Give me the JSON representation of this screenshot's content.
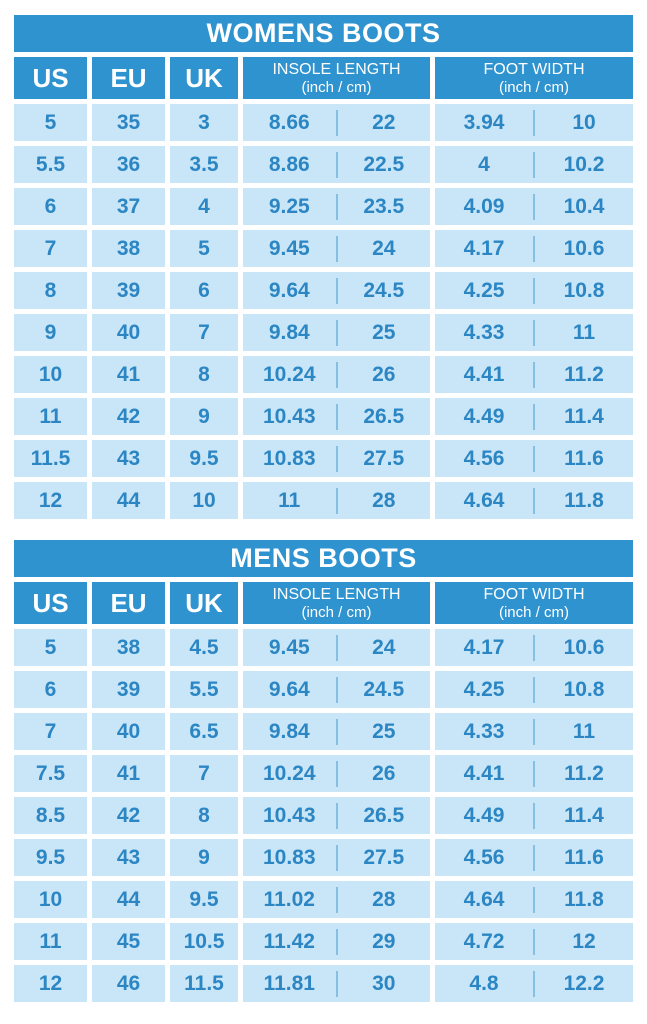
{
  "colors": {
    "header_bg": "#2E93CF",
    "header_text": "#FFFFFF",
    "cell_bg": "#C9E6F8",
    "cell_text": "#2B86C3",
    "divider": "#85BFE1",
    "page_bg": "#FFFFFF"
  },
  "chart_data": [
    {
      "type": "table",
      "title": "WOMENS BOOTS",
      "headers": {
        "us": "US",
        "eu": "EU",
        "uk": "UK",
        "insole_title": "INSOLE LENGTH",
        "insole_sub": "(inch / cm)",
        "foot_title": "FOOT WIDTH",
        "foot_sub": "(inch / cm)"
      },
      "rows": [
        {
          "us": "5",
          "eu": "35",
          "uk": "3",
          "insole_in": "8.66",
          "insole_cm": "22",
          "foot_in": "3.94",
          "foot_cm": "10"
        },
        {
          "us": "5.5",
          "eu": "36",
          "uk": "3.5",
          "insole_in": "8.86",
          "insole_cm": "22.5",
          "foot_in": "4",
          "foot_cm": "10.2"
        },
        {
          "us": "6",
          "eu": "37",
          "uk": "4",
          "insole_in": "9.25",
          "insole_cm": "23.5",
          "foot_in": "4.09",
          "foot_cm": "10.4"
        },
        {
          "us": "7",
          "eu": "38",
          "uk": "5",
          "insole_in": "9.45",
          "insole_cm": "24",
          "foot_in": "4.17",
          "foot_cm": "10.6"
        },
        {
          "us": "8",
          "eu": "39",
          "uk": "6",
          "insole_in": "9.64",
          "insole_cm": "24.5",
          "foot_in": "4.25",
          "foot_cm": "10.8"
        },
        {
          "us": "9",
          "eu": "40",
          "uk": "7",
          "insole_in": "9.84",
          "insole_cm": "25",
          "foot_in": "4.33",
          "foot_cm": "11"
        },
        {
          "us": "10",
          "eu": "41",
          "uk": "8",
          "insole_in": "10.24",
          "insole_cm": "26",
          "foot_in": "4.41",
          "foot_cm": "11.2"
        },
        {
          "us": "11",
          "eu": "42",
          "uk": "9",
          "insole_in": "10.43",
          "insole_cm": "26.5",
          "foot_in": "4.49",
          "foot_cm": "11.4"
        },
        {
          "us": "11.5",
          "eu": "43",
          "uk": "9.5",
          "insole_in": "10.83",
          "insole_cm": "27.5",
          "foot_in": "4.56",
          "foot_cm": "11.6"
        },
        {
          "us": "12",
          "eu": "44",
          "uk": "10",
          "insole_in": "11",
          "insole_cm": "28",
          "foot_in": "4.64",
          "foot_cm": "11.8"
        }
      ]
    },
    {
      "type": "table",
      "title": "MENS BOOTS",
      "headers": {
        "us": "US",
        "eu": "EU",
        "uk": "UK",
        "insole_title": "INSOLE LENGTH",
        "insole_sub": "(inch / cm)",
        "foot_title": "FOOT WIDTH",
        "foot_sub": "(inch / cm)"
      },
      "rows": [
        {
          "us": "5",
          "eu": "38",
          "uk": "4.5",
          "insole_in": "9.45",
          "insole_cm": "24",
          "foot_in": "4.17",
          "foot_cm": "10.6"
        },
        {
          "us": "6",
          "eu": "39",
          "uk": "5.5",
          "insole_in": "9.64",
          "insole_cm": "24.5",
          "foot_in": "4.25",
          "foot_cm": "10.8"
        },
        {
          "us": "7",
          "eu": "40",
          "uk": "6.5",
          "insole_in": "9.84",
          "insole_cm": "25",
          "foot_in": "4.33",
          "foot_cm": "11"
        },
        {
          "us": "7.5",
          "eu": "41",
          "uk": "7",
          "insole_in": "10.24",
          "insole_cm": "26",
          "foot_in": "4.41",
          "foot_cm": "11.2"
        },
        {
          "us": "8.5",
          "eu": "42",
          "uk": "8",
          "insole_in": "10.43",
          "insole_cm": "26.5",
          "foot_in": "4.49",
          "foot_cm": "11.4"
        },
        {
          "us": "9.5",
          "eu": "43",
          "uk": "9",
          "insole_in": "10.83",
          "insole_cm": "27.5",
          "foot_in": "4.56",
          "foot_cm": "11.6"
        },
        {
          "us": "10",
          "eu": "44",
          "uk": "9.5",
          "insole_in": "11.02",
          "insole_cm": "28",
          "foot_in": "4.64",
          "foot_cm": "11.8"
        },
        {
          "us": "11",
          "eu": "45",
          "uk": "10.5",
          "insole_in": "11.42",
          "insole_cm": "29",
          "foot_in": "4.72",
          "foot_cm": "12"
        },
        {
          "us": "12",
          "eu": "46",
          "uk": "11.5",
          "insole_in": "11.81",
          "insole_cm": "30",
          "foot_in": "4.8",
          "foot_cm": "12.2"
        }
      ]
    }
  ]
}
